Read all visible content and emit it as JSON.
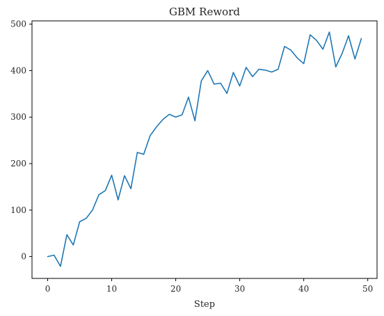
{
  "colors": {
    "series": "#1f77b4",
    "background": "#ffffff",
    "axes": "#000000"
  },
  "chart_data": {
    "type": "line",
    "title": "GBM Reword",
    "xlabel": "Step",
    "ylabel": "",
    "xlim": [
      -2.45,
      51.45
    ],
    "ylim": [
      -47,
      507
    ],
    "xticks": [
      0,
      10,
      20,
      30,
      40,
      50
    ],
    "yticks": [
      0,
      100,
      200,
      300,
      400,
      500
    ],
    "grid": false,
    "legend": "none",
    "series": [
      {
        "x": [
          0,
          1,
          2,
          3,
          4,
          5,
          6,
          7,
          8,
          9,
          10,
          11,
          12,
          13,
          14,
          15,
          16,
          17,
          18,
          19,
          20,
          21,
          22,
          23,
          24,
          25,
          26,
          27,
          28,
          29,
          30,
          31,
          32,
          33,
          34,
          35,
          36,
          37,
          38,
          39,
          40,
          41,
          42,
          43,
          44,
          45,
          46,
          47,
          48,
          49
        ],
        "values": [
          0,
          3,
          -21,
          47,
          25,
          75,
          82,
          100,
          133,
          142,
          175,
          122,
          174,
          146,
          224,
          220,
          260,
          279,
          295,
          306,
          300,
          305,
          343,
          292,
          378,
          400,
          371,
          373,
          351,
          396,
          367,
          407,
          387,
          403,
          401,
          397,
          403,
          452,
          444,
          427,
          415,
          477,
          465,
          446,
          483,
          408,
          437,
          475,
          425,
          469
        ]
      }
    ]
  }
}
